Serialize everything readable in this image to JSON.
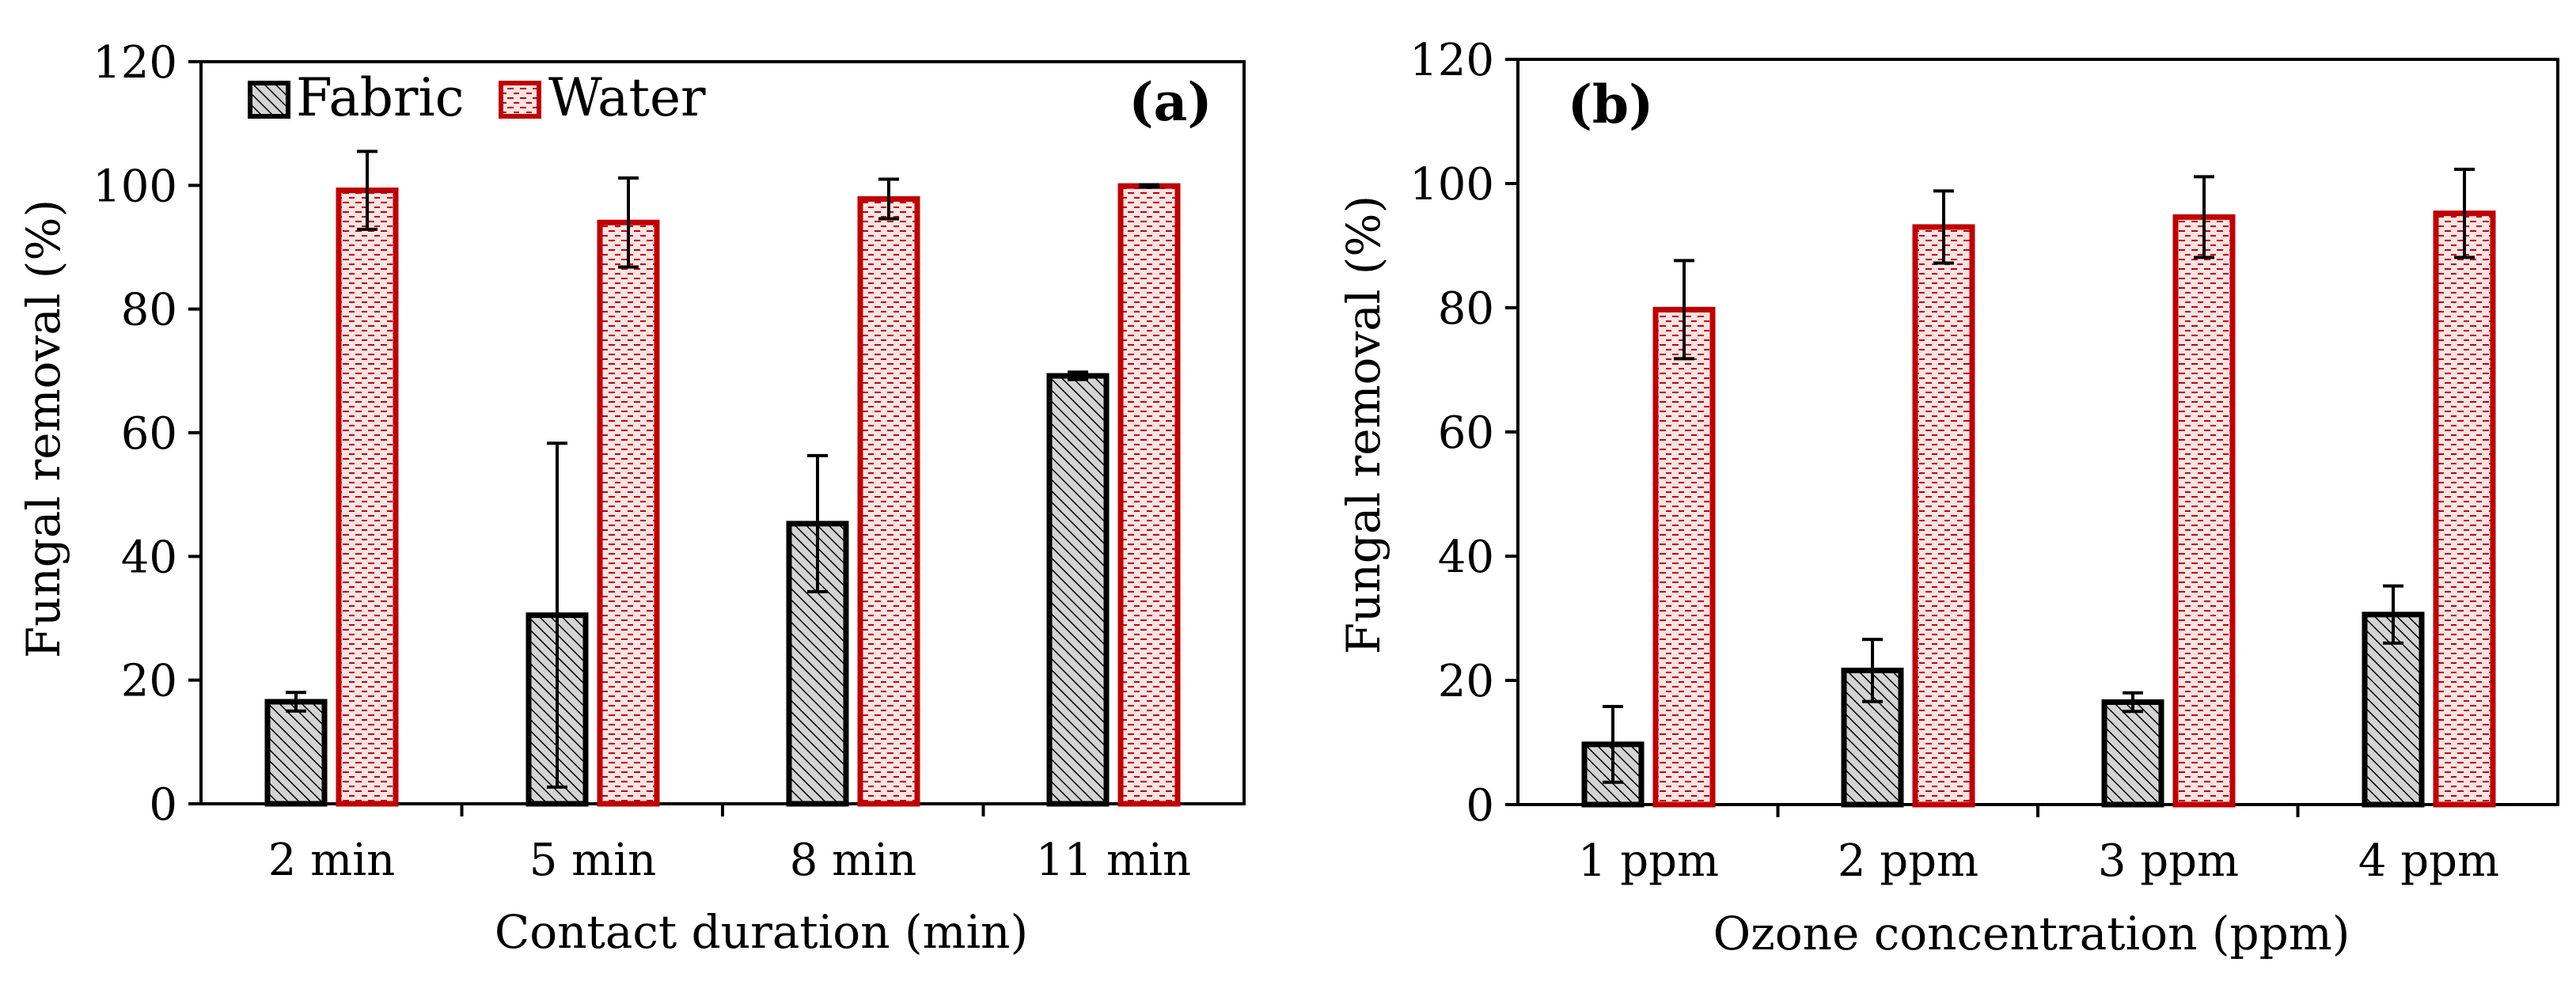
{
  "chart_data": [
    {
      "type": "bar",
      "panel_label": "(a)",
      "xlabel": "Contact duration (min)",
      "ylabel": "Fungal removal (%)",
      "categories": [
        "2 min",
        "5 min",
        "8 min",
        "11 min"
      ],
      "ylim": [
        0,
        120
      ],
      "yticks": [
        0,
        20,
        40,
        60,
        80,
        100,
        120
      ],
      "grid": false,
      "legend": {
        "placement": "top-left",
        "entries": [
          "Fabric",
          "Water"
        ]
      },
      "series": [
        {
          "name": "Fabric",
          "values": [
            16.5,
            30.5,
            45.3,
            69.2
          ],
          "errors": [
            1.5,
            27.8,
            11.0,
            0.6
          ]
        },
        {
          "name": "Water",
          "values": [
            99.2,
            94.0,
            97.8,
            99.9
          ],
          "errors": [
            6.3,
            7.2,
            3.2,
            0.2
          ]
        }
      ]
    },
    {
      "type": "bar",
      "panel_label": "(b)",
      "xlabel": "Ozone concentration (ppm)",
      "ylabel": "Fungal removal (%)",
      "categories": [
        "1 ppm",
        "2 ppm",
        "3 ppm",
        "4 ppm"
      ],
      "ylim": [
        0,
        120
      ],
      "yticks": [
        0,
        20,
        40,
        60,
        80,
        100,
        120
      ],
      "grid": false,
      "legend": {
        "placement": "none",
        "entries": []
      },
      "series": [
        {
          "name": "Fabric",
          "values": [
            9.7,
            21.6,
            16.5,
            30.6
          ],
          "errors": [
            6.1,
            5.0,
            1.5,
            4.6
          ]
        },
        {
          "name": "Water",
          "values": [
            79.7,
            93.0,
            94.6,
            95.2
          ],
          "errors": [
            7.9,
            5.8,
            6.5,
            7.1
          ]
        }
      ]
    }
  ],
  "colors": {
    "fabric_edge": "#000000",
    "fabric_fill": "#d4d4d4",
    "water_edge": "#c00000",
    "water_fill": "#fbe4e4"
  }
}
